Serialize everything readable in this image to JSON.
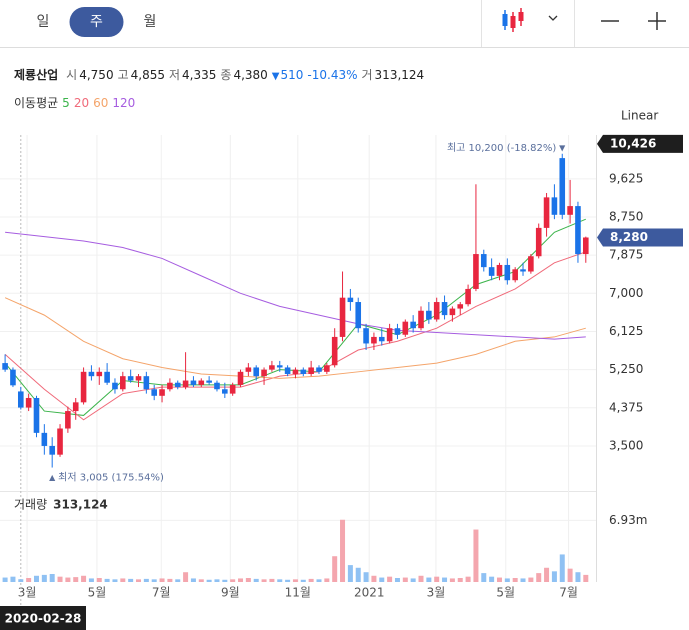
{
  "tabs": [
    "일",
    "주",
    "월"
  ],
  "selected_tab": 1,
  "stock": {
    "name": "제룡산업",
    "fields": [
      {
        "label": "시",
        "value": "4,750"
      },
      {
        "label": "고",
        "value": "4,855"
      },
      {
        "label": "저",
        "value": "4,335"
      },
      {
        "label": "종",
        "value": "4,380"
      }
    ],
    "change": "510",
    "change_pct": "-10.43%",
    "volume_label": "거",
    "volume": "313,124"
  },
  "ma_title": "이동평균",
  "scale_mode": "Linear",
  "chart_data": [
    {
      "type": "candlestick",
      "open": [
        5400,
        5250,
        4750,
        4380,
        4600,
        3800,
        3500,
        3300,
        3900,
        4300,
        4500,
        5200,
        5100,
        5200,
        4950,
        4800,
        5100,
        5000,
        5100,
        4800,
        4650,
        4800,
        4950,
        4850,
        5000,
        4900,
        5000,
        4950,
        4800,
        4700,
        4900,
        5200,
        5300,
        5100,
        5250,
        5350,
        5300,
        5150,
        5250,
        5150,
        5300,
        5200,
        5350,
        6000,
        6900,
        6800,
        6200,
        5850,
        6000,
        5900,
        6200,
        6050,
        6350,
        6200,
        6600,
        6400,
        6800,
        6500,
        6650,
        6750,
        7100,
        7900,
        7600,
        7400,
        7650,
        7300,
        7550,
        7500,
        7850,
        8500,
        9200,
        10100,
        8800,
        9000,
        7900
      ],
      "high": [
        5600,
        5300,
        4855,
        4700,
        4650,
        4000,
        3700,
        4000,
        4400,
        4600,
        5300,
        5350,
        5300,
        5400,
        5050,
        5200,
        5250,
        5150,
        5200,
        4900,
        4900,
        5050,
        5000,
        5650,
        5100,
        5050,
        5100,
        5000,
        4950,
        4950,
        5250,
        5400,
        5350,
        5300,
        5450,
        5450,
        5350,
        5300,
        5300,
        5450,
        5350,
        5400,
        6200,
        7500,
        7100,
        6900,
        6300,
        6100,
        6200,
        6300,
        6300,
        6400,
        6500,
        6700,
        6800,
        6900,
        6950,
        6700,
        6800,
        7200,
        9500,
        8000,
        7800,
        7700,
        7800,
        7600,
        7700,
        7900,
        8600,
        9300,
        9500,
        10200,
        9600,
        9100,
        8300
      ],
      "low": [
        5200,
        4850,
        4335,
        4300,
        3700,
        3300,
        3005,
        3250,
        3800,
        4100,
        4450,
        5000,
        4900,
        4900,
        4700,
        4750,
        4950,
        4850,
        4700,
        4550,
        4500,
        4750,
        4800,
        4800,
        4850,
        4850,
        4900,
        4750,
        4600,
        4650,
        4850,
        5100,
        5000,
        4900,
        5200,
        5200,
        5100,
        5050,
        5100,
        5100,
        5150,
        5150,
        5300,
        5900,
        6600,
        6100,
        5700,
        5700,
        5800,
        5850,
        5950,
        6000,
        6100,
        6150,
        6300,
        6350,
        6400,
        6350,
        6500,
        6700,
        7050,
        7500,
        7300,
        7300,
        7200,
        7250,
        7400,
        7450,
        7800,
        8300,
        8700,
        8700,
        8600,
        7700,
        7700
      ],
      "close": [
        5250,
        4890,
        4380,
        4600,
        3800,
        3500,
        3300,
        3900,
        4300,
        4500,
        5200,
        5100,
        5200,
        4950,
        4800,
        5100,
        5000,
        5100,
        4800,
        4650,
        4800,
        4950,
        4850,
        5000,
        4900,
        5000,
        4950,
        4800,
        4700,
        4900,
        5200,
        5300,
        5100,
        5250,
        5350,
        5300,
        5150,
        5250,
        5150,
        5300,
        5200,
        5350,
        6000,
        6900,
        6800,
        6200,
        5850,
        6000,
        5900,
        6200,
        6050,
        6350,
        6200,
        6600,
        6400,
        6800,
        6500,
        6650,
        6750,
        7100,
        7900,
        7600,
        7400,
        7650,
        7300,
        7550,
        7500,
        7850,
        8500,
        9200,
        8800,
        8800,
        9000,
        7900,
        8280
      ],
      "up_color": "#e8263f",
      "down_color": "#1a73e8",
      "ma_series": [
        {
          "name": "5",
          "color": "#3cb44b",
          "x": [
            0,
            5,
            10,
            15,
            20,
            25,
            30,
            35,
            40,
            45,
            50,
            55,
            60,
            65,
            70,
            74
          ],
          "values": [
            5400,
            4300,
            4200,
            5000,
            4900,
            4900,
            4900,
            5250,
            5200,
            6300,
            6050,
            6500,
            7200,
            7500,
            8400,
            8700
          ]
        },
        {
          "name": "20",
          "color": "#f06a7a",
          "x": [
            0,
            5,
            10,
            15,
            20,
            25,
            30,
            35,
            40,
            45,
            50,
            55,
            60,
            65,
            70,
            74
          ],
          "values": [
            5600,
            4800,
            4100,
            4700,
            4850,
            4850,
            4850,
            5100,
            5200,
            5700,
            5900,
            6200,
            6700,
            7100,
            7700,
            7950
          ]
        },
        {
          "name": "60",
          "color": "#f4a46a",
          "x": [
            0,
            5,
            10,
            15,
            20,
            25,
            30,
            35,
            40,
            45,
            50,
            55,
            60,
            65,
            70,
            74
          ],
          "values": [
            6900,
            6500,
            5900,
            5500,
            5300,
            5150,
            5100,
            5050,
            5100,
            5200,
            5300,
            5400,
            5600,
            5900,
            6000,
            6200
          ]
        },
        {
          "name": "120",
          "color": "#a65de0",
          "x": [
            0,
            5,
            10,
            15,
            20,
            25,
            30,
            35,
            40,
            45,
            50,
            55,
            60,
            65,
            70,
            74
          ],
          "values": [
            8400,
            8300,
            8200,
            8050,
            7800,
            7400,
            7000,
            6700,
            6500,
            6300,
            6150,
            6100,
            6050,
            6000,
            5950,
            6000
          ]
        }
      ],
      "xlim": [
        -0.65,
        75.3
      ],
      "ylim": [
        2490,
        10630
      ],
      "yticks": [
        {
          "value": 3500,
          "label": "3,500"
        },
        {
          "value": 4375,
          "label": "4,375"
        },
        {
          "value": 5250,
          "label": "5,250"
        },
        {
          "value": 6125,
          "label": "6,125"
        },
        {
          "value": 7000,
          "label": "7,000"
        },
        {
          "value": 7875,
          "label": "7,875"
        },
        {
          "value": 8750,
          "label": "8,750"
        },
        {
          "value": 9625,
          "label": "9,625"
        }
      ],
      "xticks": [
        {
          "value": 2.8,
          "label": "3월"
        },
        {
          "value": 11.7,
          "label": "5월"
        },
        {
          "value": 19.9,
          "label": "7월"
        },
        {
          "value": 28.7,
          "label": "9월"
        },
        {
          "value": 37.3,
          "label": "11월"
        },
        {
          "value": 46.4,
          "label": "2021"
        },
        {
          "value": 54.9,
          "label": "3월"
        },
        {
          "value": 63.8,
          "label": "5월"
        },
        {
          "value": 71.8,
          "label": "7월"
        }
      ],
      "grid": true,
      "price_labels": [
        {
          "value": 10426,
          "label": "10,426",
          "color": "#1e1e1e"
        },
        {
          "value": 8280,
          "label": "8,280",
          "color": "#3d5a9e"
        }
      ],
      "annotations": [
        {
          "index": 71,
          "value": 10200,
          "label": "최고 10,200 (-18.82%)"
        },
        {
          "index": 6,
          "value": 3005,
          "label": "최저 3,005 (175.54%)"
        }
      ],
      "crosshair": {
        "index": 2,
        "label": "2020-02-28"
      }
    },
    {
      "type": "bar",
      "title": "거래량",
      "legend_value": "313,124",
      "values": [
        500000,
        600000,
        313124,
        450000,
        700000,
        800000,
        900000,
        600000,
        500000,
        550000,
        700000,
        400000,
        450000,
        350000,
        300000,
        400000,
        350000,
        300000,
        350000,
        300000,
        400000,
        350000,
        300000,
        1100000,
        400000,
        300000,
        250000,
        300000,
        250000,
        300000,
        400000,
        450000,
        350000,
        300000,
        350000,
        300000,
        250000,
        300000,
        250000,
        350000,
        300000,
        400000,
        2900000,
        7000000,
        1900000,
        1600000,
        1100000,
        700000,
        500000,
        600000,
        450000,
        500000,
        400000,
        700000,
        500000,
        600000,
        500000,
        400000,
        450000,
        600000,
        5900000,
        1000000,
        600000,
        500000,
        400000,
        450000,
        400000,
        500000,
        1000000,
        1600000,
        1200000,
        3100000,
        1500000,
        1100000,
        800000
      ],
      "up_color": "#f4a6ae",
      "down_color": "#8fc1f3",
      "ylim": [
        0,
        8660000
      ],
      "yticks": [
        {
          "value": 6930000,
          "label": "6.93m"
        }
      ]
    }
  ]
}
